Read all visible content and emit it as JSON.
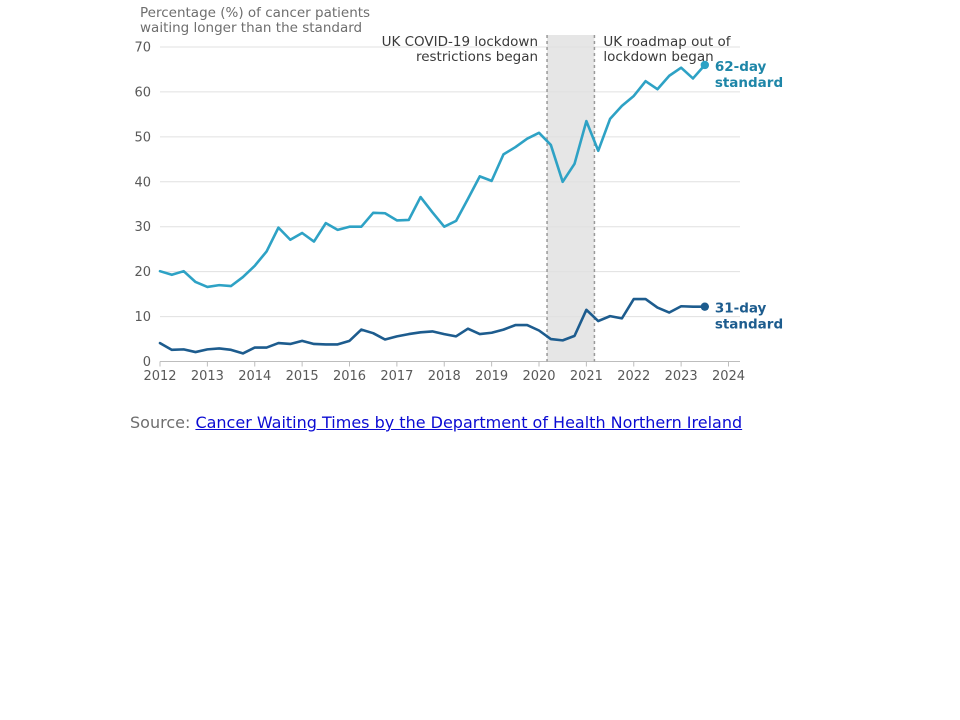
{
  "chart_data": {
    "type": "line",
    "ylabel": "Percentage (%) of cancer patients waiting longer than the standard",
    "ylabel_lines": [
      "Percentage (%) of cancer patients",
      "waiting longer than the standard"
    ],
    "xlim": [
      2012,
      2024
    ],
    "ylim": [
      0,
      70
    ],
    "x_ticks": [
      2012,
      2013,
      2014,
      2015,
      2016,
      2017,
      2018,
      2019,
      2020,
      2021,
      2022,
      2023,
      2024
    ],
    "y_ticks": [
      0,
      10,
      20,
      30,
      40,
      50,
      60,
      70
    ],
    "grid": true,
    "x": [
      2012.0,
      2012.25,
      2012.5,
      2012.75,
      2013.0,
      2013.25,
      2013.5,
      2013.75,
      2014.0,
      2014.25,
      2014.5,
      2014.75,
      2015.0,
      2015.25,
      2015.5,
      2015.75,
      2016.0,
      2016.25,
      2016.5,
      2016.75,
      2017.0,
      2017.25,
      2017.5,
      2017.75,
      2018.0,
      2018.25,
      2018.5,
      2018.75,
      2019.0,
      2019.25,
      2019.5,
      2019.75,
      2020.0,
      2020.25,
      2020.5,
      2020.75,
      2021.0,
      2021.25,
      2021.5,
      2021.75,
      2022.0,
      2022.25,
      2022.5,
      2022.75,
      2023.0,
      2023.25,
      2023.5
    ],
    "series": [
      {
        "name": "62-day standard",
        "label_lines": [
          "62-day",
          "standard"
        ],
        "color": "#2ea2c5",
        "label_color": "#1e86a8",
        "values": [
          20.1,
          19.3,
          20.1,
          17.7,
          16.6,
          17.0,
          16.8,
          18.8,
          21.3,
          24.5,
          29.8,
          27.1,
          28.6,
          26.7,
          30.8,
          29.3,
          30.0,
          30.0,
          33.1,
          33.0,
          31.4,
          31.5,
          36.6,
          33.2,
          30.0,
          31.3,
          36.2,
          41.2,
          40.2,
          46.1,
          47.7,
          49.6,
          50.9,
          48.2,
          40.0,
          44.0,
          53.5,
          46.9,
          54.0,
          56.9,
          59.1,
          62.4,
          60.6,
          63.6,
          65.4,
          63.0,
          66.0
        ]
      },
      {
        "name": "31-day standard",
        "label_lines": [
          "31-day",
          "standard"
        ],
        "color": "#1d5c8e",
        "label_color": "#1d5c8e",
        "values": [
          4.1,
          2.6,
          2.7,
          2.1,
          2.7,
          2.9,
          2.6,
          1.8,
          3.1,
          3.1,
          4.1,
          3.9,
          4.6,
          3.9,
          3.8,
          3.8,
          4.6,
          7.1,
          6.3,
          4.9,
          5.6,
          6.1,
          6.5,
          6.7,
          6.1,
          5.6,
          7.3,
          6.1,
          6.4,
          7.1,
          8.1,
          8.1,
          6.9,
          5.0,
          4.7,
          5.7,
          11.5,
          9.0,
          10.1,
          9.6,
          13.9,
          13.9,
          12.0,
          10.9,
          12.3,
          12.2,
          12.2
        ]
      }
    ],
    "shaded_period": {
      "start": 2020.17,
      "end": 2021.17,
      "color": "#e6e6e6"
    },
    "annotations": [
      {
        "id": "lockdown",
        "x": 2020.17,
        "lines": [
          "UK COVID-19 lockdown",
          "restrictions began"
        ],
        "align": "right"
      },
      {
        "id": "roadmap",
        "x": 2021.17,
        "lines": [
          "UK roadmap out of",
          "lockdown began"
        ],
        "align": "left"
      }
    ]
  },
  "source": {
    "prefix": "Source: ",
    "link_text": "Cancer Waiting Times by the Department of Health Northern Ireland"
  }
}
